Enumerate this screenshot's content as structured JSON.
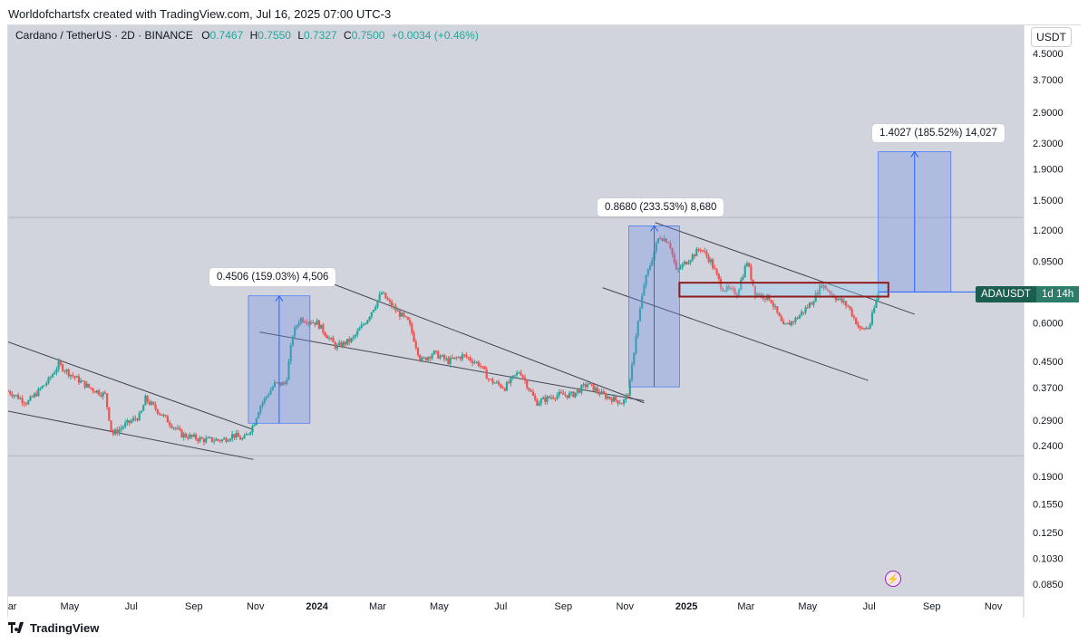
{
  "header": {
    "attribution": "Worldofchartsfx created with TradingView.com, Jul 16, 2025 07:00 UTC-3"
  },
  "footer": {
    "brand": "TradingView"
  },
  "symbol_info": {
    "name": "Cardano / TetherUS · 2D · BINANCE",
    "o_label": "O",
    "o_value": "0.7467",
    "h_label": "H",
    "h_value": "0.7550",
    "l_label": "L",
    "l_value": "0.7327",
    "c_label": "C",
    "c_value": "0.7500",
    "change": "+0.0034 (+0.46%)"
  },
  "colors": {
    "plot_bg": "#d1d4dc",
    "up": "#26a69a",
    "down": "#ef5350",
    "measure_fill": "#6f8ee8",
    "measure_line": "#2962ff",
    "resistance_box": "#8f1d1d",
    "ticker_tag": "#1b5e4f",
    "trendline": "#434651"
  },
  "currency_button": "USDT",
  "ticker_tag": {
    "symbol": "ADAUSDT",
    "countdown": "1d 14h"
  },
  "icons": [
    "tradingview-logo-icon",
    "lightning-icon"
  ],
  "chart_data": {
    "type": "candlestick",
    "title": "Cardano / TetherUS · 2D · BINANCE",
    "y_scale": "log",
    "ylim": [
      0.08,
      5.0
    ],
    "y_ticks": [
      "4.5000",
      "3.7000",
      "2.9000",
      "2.3000",
      "1.9000",
      "1.5000",
      "1.2000",
      "0.9500",
      "0.6000",
      "0.4500",
      "0.3700",
      "0.2900",
      "0.2400",
      "0.1900",
      "0.1550",
      "0.1250",
      "0.1030",
      "0.0850"
    ],
    "x_ticks": [
      "Mar",
      "May",
      "Jul",
      "Sep",
      "Nov",
      "2024",
      "Mar",
      "May",
      "Jul",
      "Sep",
      "Nov",
      "2025",
      "Mar",
      "May",
      "Jul",
      "Sep",
      "Nov"
    ],
    "x_range": [
      "2023-03-01",
      "2025-12-01"
    ],
    "grid": false,
    "horizontal_lines": [
      1.32,
      0.222
    ],
    "series": [
      {
        "name": "ADAUSDT",
        "close": [
          [
            "2023-03-01",
            0.36
          ],
          [
            "2023-03-20",
            0.33
          ],
          [
            "2023-04-10",
            0.39
          ],
          [
            "2023-04-20",
            0.44
          ],
          [
            "2023-05-01",
            0.41
          ],
          [
            "2023-05-20",
            0.37
          ],
          [
            "2023-06-05",
            0.35
          ],
          [
            "2023-06-12",
            0.26
          ],
          [
            "2023-06-25",
            0.28
          ],
          [
            "2023-07-10",
            0.3
          ],
          [
            "2023-07-15",
            0.34
          ],
          [
            "2023-08-01",
            0.3
          ],
          [
            "2023-08-20",
            0.26
          ],
          [
            "2023-09-10",
            0.25
          ],
          [
            "2023-09-30",
            0.25
          ],
          [
            "2023-10-10",
            0.26
          ],
          [
            "2023-10-20",
            0.25
          ],
          [
            "2023-10-30",
            0.28
          ],
          [
            "2023-11-05",
            0.32
          ],
          [
            "2023-11-20",
            0.38
          ],
          [
            "2023-12-01",
            0.38
          ],
          [
            "2023-12-08",
            0.55
          ],
          [
            "2023-12-15",
            0.62
          ],
          [
            "2024-01-01",
            0.6
          ],
          [
            "2024-01-20",
            0.5
          ],
          [
            "2024-02-05",
            0.53
          ],
          [
            "2024-02-20",
            0.62
          ],
          [
            "2024-03-05",
            0.75
          ],
          [
            "2024-03-15",
            0.68
          ],
          [
            "2024-04-01",
            0.6
          ],
          [
            "2024-04-13",
            0.45
          ],
          [
            "2024-04-25",
            0.48
          ],
          [
            "2024-05-10",
            0.45
          ],
          [
            "2024-05-25",
            0.47
          ],
          [
            "2024-06-10",
            0.44
          ],
          [
            "2024-06-20",
            0.39
          ],
          [
            "2024-07-05",
            0.37
          ],
          [
            "2024-07-20",
            0.42
          ],
          [
            "2024-08-05",
            0.33
          ],
          [
            "2024-08-25",
            0.35
          ],
          [
            "2024-09-10",
            0.35
          ],
          [
            "2024-09-25",
            0.38
          ],
          [
            "2024-10-10",
            0.35
          ],
          [
            "2024-10-30",
            0.33
          ],
          [
            "2024-11-05",
            0.36
          ],
          [
            "2024-11-12",
            0.55
          ],
          [
            "2024-11-20",
            0.8
          ],
          [
            "2024-12-01",
            1.05
          ],
          [
            "2024-12-05",
            1.15
          ],
          [
            "2024-12-15",
            1.1
          ],
          [
            "2024-12-22",
            0.88
          ],
          [
            "2025-01-01",
            0.95
          ],
          [
            "2025-01-15",
            1.05
          ],
          [
            "2025-01-25",
            0.95
          ],
          [
            "2025-02-05",
            0.78
          ],
          [
            "2025-02-20",
            0.75
          ],
          [
            "2025-03-02",
            0.95
          ],
          [
            "2025-03-10",
            0.75
          ],
          [
            "2025-03-25",
            0.72
          ],
          [
            "2025-04-07",
            0.58
          ],
          [
            "2025-04-20",
            0.62
          ],
          [
            "2025-05-05",
            0.7
          ],
          [
            "2025-05-15",
            0.8
          ],
          [
            "2025-05-30",
            0.72
          ],
          [
            "2025-06-10",
            0.68
          ],
          [
            "2025-06-22",
            0.57
          ],
          [
            "2025-07-01",
            0.58
          ],
          [
            "2025-07-10",
            0.75
          ]
        ]
      }
    ],
    "annotations": [
      {
        "type": "measure",
        "label": "0.4506 (159.03%) 4,506",
        "from": [
          "2023-10-25",
          0.2833
        ],
        "to": [
          "2023-12-25",
          0.7339
        ]
      },
      {
        "type": "measure",
        "label": "0.8680 (233.53%) 8,680",
        "from": [
          "2024-11-05",
          0.3717
        ],
        "to": [
          "2024-12-25",
          1.2397
        ]
      },
      {
        "type": "measure",
        "label": "1.4027 (185.52%) 14,027",
        "from": [
          "2025-07-10",
          0.7561
        ],
        "to": [
          "2025-09-20",
          2.1588
        ]
      },
      {
        "type": "zone",
        "label": "",
        "from": [
          "2024-12-25",
          0.73
        ],
        "to": [
          "2025-07-20",
          0.81
        ]
      }
    ]
  }
}
